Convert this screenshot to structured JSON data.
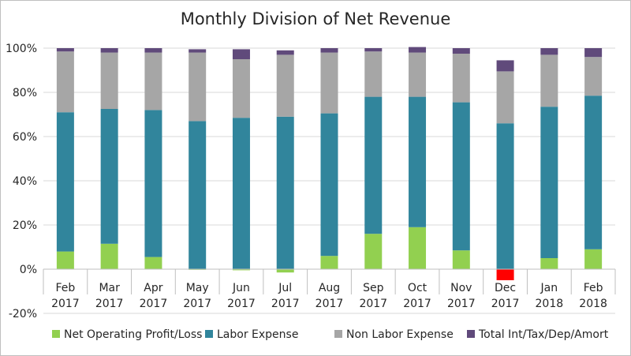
{
  "chart_data": {
    "type": "bar",
    "stacked": true,
    "title": "Monthly Division of Net Revenue",
    "xlabel": "",
    "ylabel": "",
    "ylim": [
      -20,
      100
    ],
    "yticks": [
      "-20%",
      "0%",
      "20%",
      "40%",
      "60%",
      "80%",
      "100%"
    ],
    "ytick_values": [
      -20,
      0,
      20,
      40,
      60,
      80,
      100
    ],
    "grid": true,
    "legend_position": "bottom",
    "categories": [
      [
        "Feb",
        "2017"
      ],
      [
        "Mar",
        "2017"
      ],
      [
        "Apr",
        "2017"
      ],
      [
        "May",
        "2017"
      ],
      [
        "Jun",
        "2017"
      ],
      [
        "Jul",
        "2017"
      ],
      [
        "Aug",
        "2017"
      ],
      [
        "Sep",
        "2017"
      ],
      [
        "Oct",
        "2017"
      ],
      [
        "Nov",
        "2017"
      ],
      [
        "Dec",
        "2017"
      ],
      [
        "Jan",
        "2018"
      ],
      [
        "Feb",
        "2018"
      ]
    ],
    "negative_color": "#ff0000",
    "series": [
      {
        "name": "Net Operating Profit/Loss",
        "color": "#92d050",
        "values": [
          8,
          11.5,
          5.5,
          -0.3,
          -0.5,
          -1.5,
          6,
          16,
          19,
          8.5,
          -5,
          5,
          9
        ]
      },
      {
        "name": "Labor Expense",
        "color": "#31859c",
        "values": [
          63,
          61,
          66.5,
          67,
          68.5,
          69,
          64.5,
          62,
          59,
          67,
          66,
          68.5,
          69.5
        ]
      },
      {
        "name": "Non Labor Expense",
        "color": "#a6a6a6",
        "values": [
          27.5,
          25.5,
          26,
          31,
          26.5,
          28,
          27.5,
          20.5,
          20,
          22,
          23.5,
          23.5,
          17.5
        ]
      },
      {
        "name": "Total Int/Tax/Dep/Amort",
        "color": "#604a7b",
        "values": [
          1.5,
          2,
          2,
          1.5,
          4.5,
          2,
          2,
          1.5,
          2.5,
          2.5,
          5,
          3,
          4
        ]
      }
    ]
  }
}
